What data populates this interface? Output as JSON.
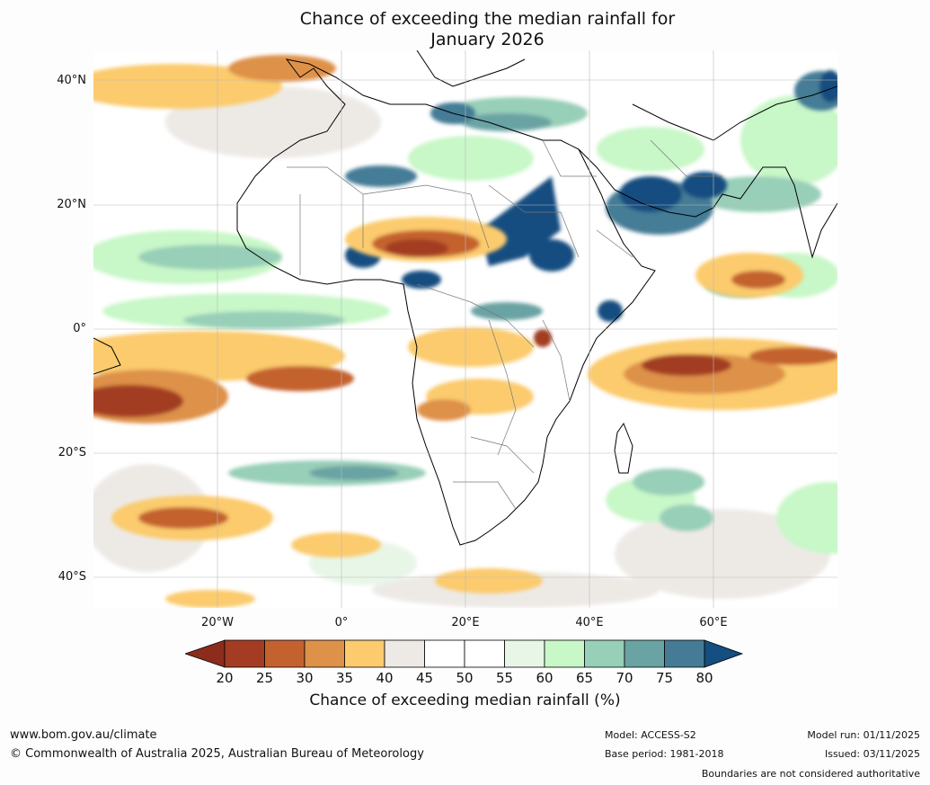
{
  "title_line1": "Chance of exceeding the median rainfall for",
  "title_line2": "January 2026",
  "lat_labels": [
    "40°N",
    "20°N",
    "0°",
    "20°S",
    "40°S"
  ],
  "lon_labels": [
    "20°W",
    "0°",
    "20°E",
    "40°E",
    "60°E"
  ],
  "colorbar": {
    "ticks": [
      "20",
      "25",
      "30",
      "35",
      "40",
      "45",
      "50",
      "55",
      "60",
      "65",
      "70",
      "75",
      "80"
    ],
    "colors": [
      "#a33c22",
      "#c4622f",
      "#de9148",
      "#fbcb6d",
      "#edeae6",
      "#ffffff",
      "#ffffff",
      "#e8f6e8",
      "#c8f7c8",
      "#98cfb8",
      "#6aa3a3",
      "#457b96"
    ],
    "under_color": "#8b2c1c",
    "over_color": "#154e80",
    "label": "Chance of exceeding median rainfall (%)"
  },
  "footer": {
    "website": "www.bom.gov.au/climate",
    "copyright": "© Commonwealth of Australia 2025, Australian Bureau of Meteorology",
    "model": "Model: ACCESS-S2",
    "base_period": "Base period: 1981-2018",
    "model_run": "Model run: 01/11/2025",
    "issued": "Issued: 03/11/2025",
    "disclaimer": "Boundaries are not considered authoritative"
  }
}
